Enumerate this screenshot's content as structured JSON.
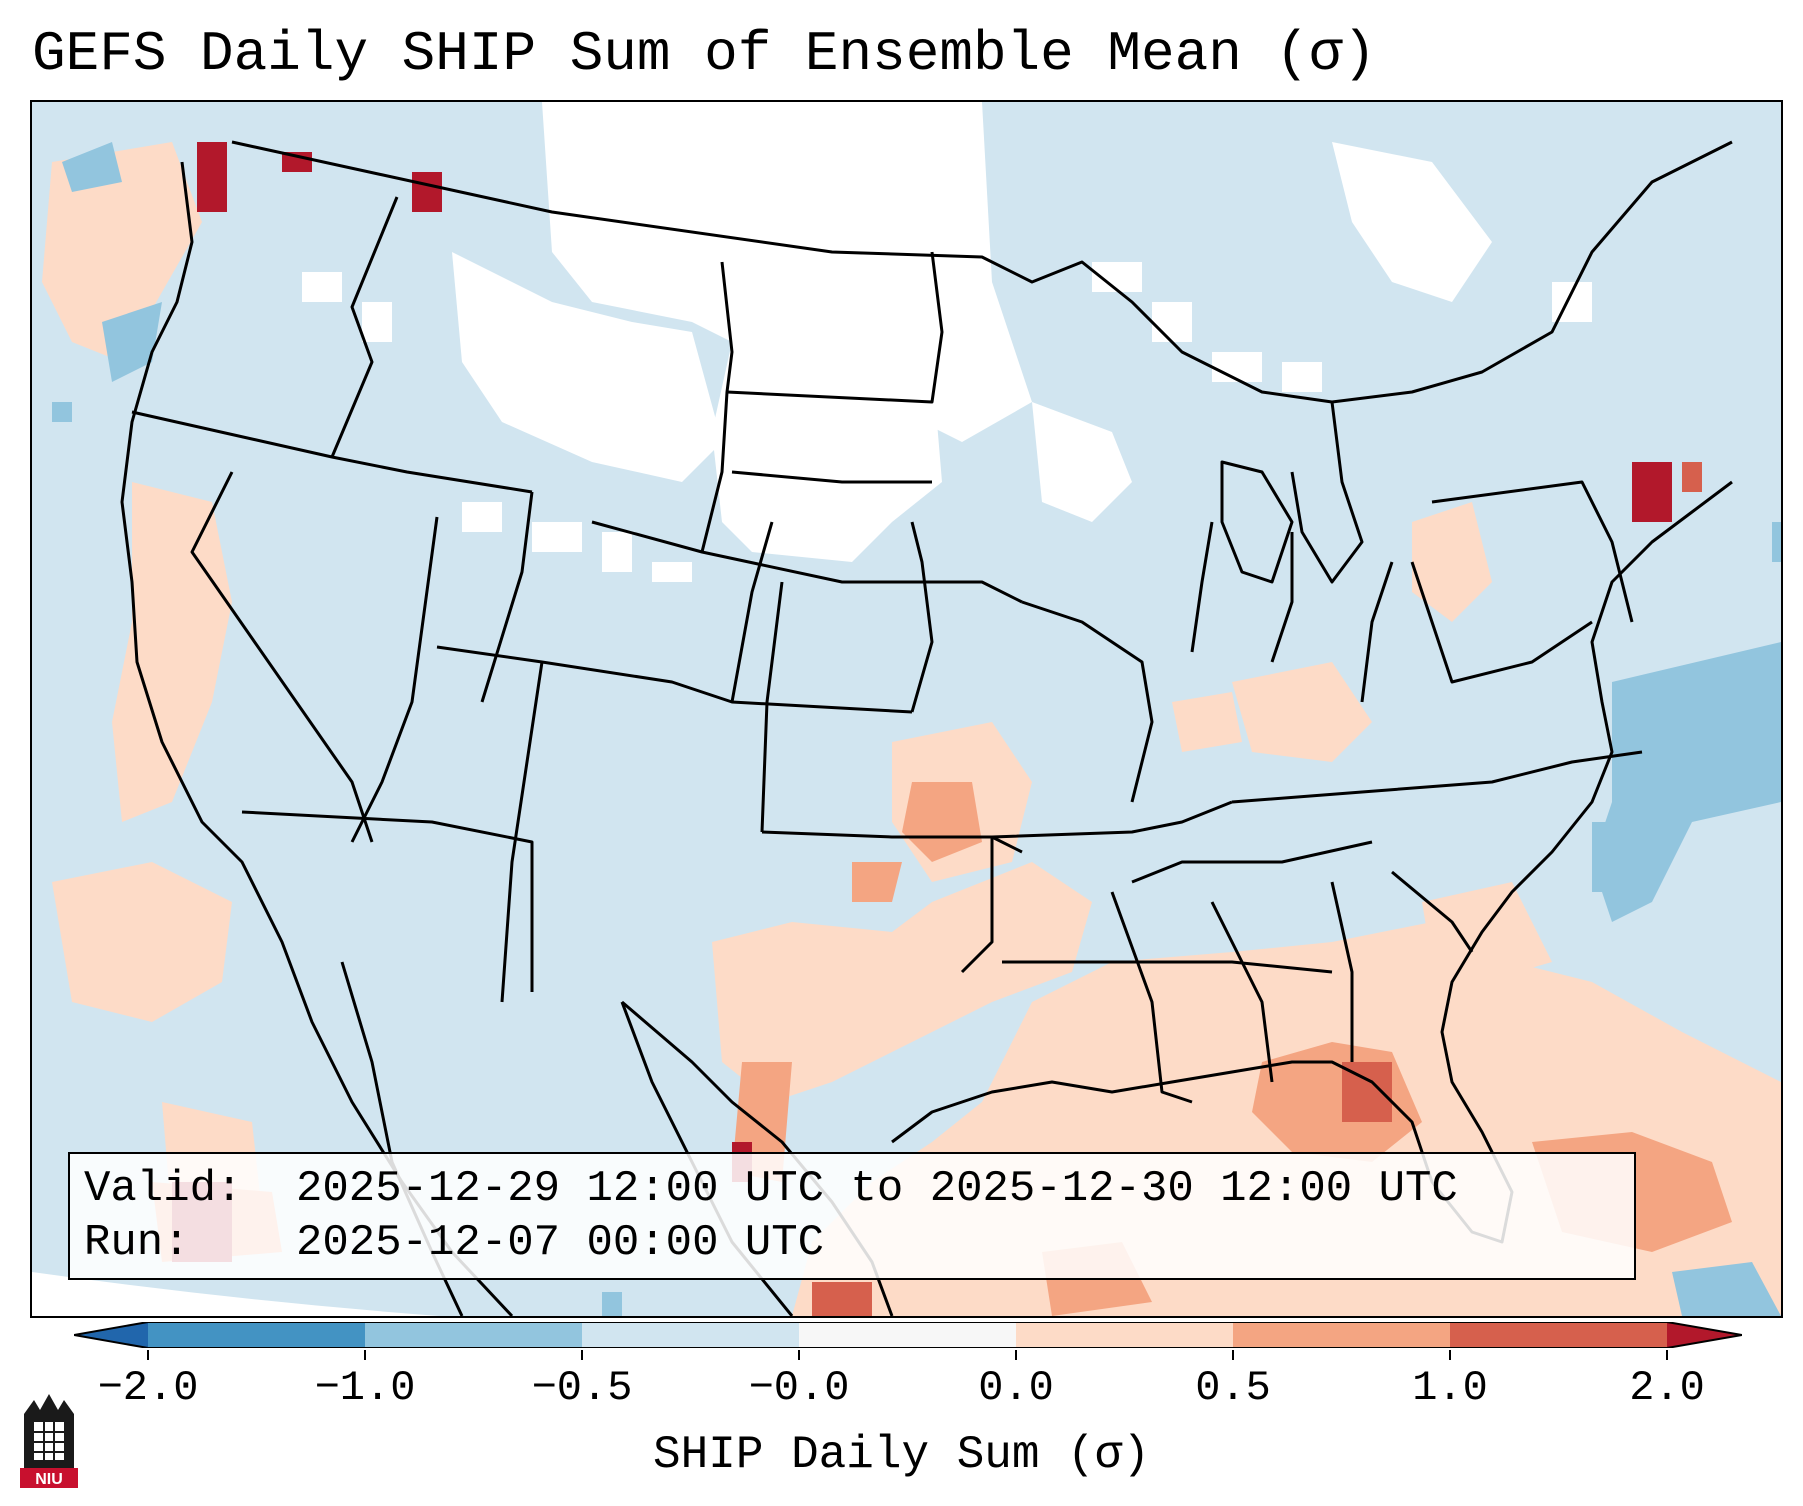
{
  "title": "GEFS Daily SHIP Sum of Ensemble Mean (σ)",
  "info": {
    "valid_label": "Valid:",
    "valid_value": "2025-12-29 12:00 UTC to 2025-12-30 12:00 UTC",
    "run_label": "Run:",
    "run_value": "2025-12-07 00:00 UTC"
  },
  "colorbar": {
    "label": "SHIP Daily Sum (σ)",
    "ticks": [
      "−2.0",
      "−1.0",
      "−0.5",
      "−0.0",
      "0.0",
      "0.5",
      "1.0",
      "2.0"
    ],
    "colors": {
      "below_-2": "#2166ac",
      "-2_to_-1": "#4393c3",
      "-1_to_-0.5": "#92c5de",
      "-0.5_to_0": "#d1e5f0",
      "zero": "#f7f7f7",
      "0_to_0.5": "#fddbc7",
      "0.5_to_1": "#f4a582",
      "1_to_2": "#d6604d",
      "above_2": "#b2182b"
    }
  },
  "map": {
    "region": "Contiguous United States",
    "colors": {
      "ocean_land_base": "#d1e5f0",
      "outline": "#000000",
      "no_signal": "#ffffff"
    }
  },
  "logo": {
    "text": "NIU",
    "color": "#c8102e"
  }
}
